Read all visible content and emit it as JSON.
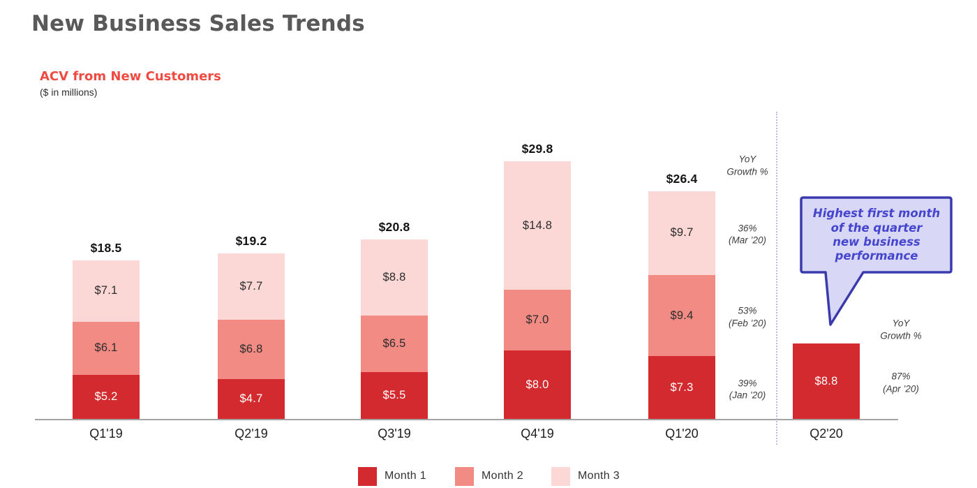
{
  "page": {
    "title": "New Business Sales Trends"
  },
  "chart": {
    "heading": "ACV from New Customers",
    "units_note": "($ in millions)"
  },
  "chart_data": {
    "type": "bar",
    "stacked": true,
    "title": "ACV from New Customers",
    "units": "$ in millions",
    "value_prefix": "$",
    "categories": [
      "Q1'19",
      "Q2'19",
      "Q3'19",
      "Q4'19",
      "Q1'20",
      "Q2'20"
    ],
    "series": [
      {
        "name": "Month 1",
        "color": "#d22a2e",
        "label_color": "#ffffff",
        "values": [
          5.2,
          4.7,
          5.5,
          8.0,
          7.3,
          8.8
        ]
      },
      {
        "name": "Month 2",
        "color": "#f28b84",
        "label_color": "#2b2b2b",
        "values": [
          6.1,
          6.8,
          6.5,
          7.0,
          9.4,
          null
        ]
      },
      {
        "name": "Month 3",
        "color": "#fbd8d6",
        "label_color": "#2b2b2b",
        "values": [
          7.1,
          7.7,
          8.8,
          14.8,
          9.7,
          null
        ]
      }
    ],
    "totals": [
      18.5,
      19.2,
      20.8,
      29.8,
      26.4,
      null
    ],
    "ylim": [
      0,
      32
    ],
    "grid": false,
    "legend_position": "bottom",
    "separator_after_category": "Q1'20",
    "axis_color": "#a3a3a3",
    "separator_color": "#bdbdec"
  },
  "annotations": {
    "col_q1_20": {
      "category": "Q1'20",
      "header_lines": [
        "YoY",
        "Growth %"
      ],
      "items": [
        {
          "pct": "36%",
          "period": "(Mar ’20)",
          "series": "Month 3"
        },
        {
          "pct": "53%",
          "period": "(Feb ’20)",
          "series": "Month 2"
        },
        {
          "pct": "39%",
          "period": "(Jan ’20)",
          "series": "Month 1"
        }
      ]
    },
    "col_q2_20": {
      "category": "Q2'20",
      "header_lines": [
        "YoY",
        "Growth %"
      ],
      "items": [
        {
          "pct": "87%",
          "period": "(Apr ’20)",
          "series": "Month 1"
        }
      ]
    }
  },
  "callout": {
    "lines": [
      "Highest first month",
      "of the quarter",
      "new business",
      "performance"
    ],
    "fill": "#d8d8f6",
    "border": "#3a3aad",
    "text_color": "#4545cd"
  }
}
